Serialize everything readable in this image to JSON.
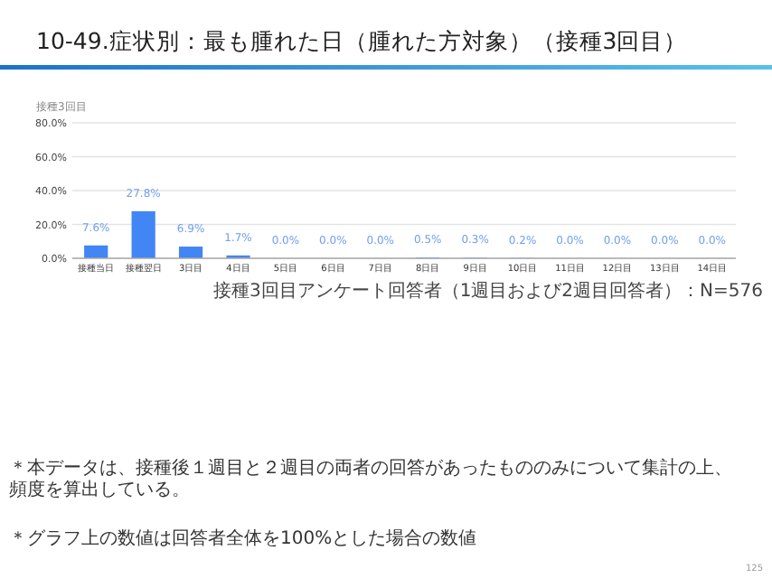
{
  "chart_data": {
    "type": "bar",
    "title": "10-49.症状別：最も腫れた日（腫れた方対象）（接種3回目）",
    "subtitle": "接種3回目",
    "categories": [
      "接種当日",
      "接種翌日",
      "3日目",
      "4日目",
      "5日目",
      "6日目",
      "7日目",
      "8日目",
      "9日目",
      "10日目",
      "11日目",
      "12日目",
      "13日目",
      "14日目"
    ],
    "values": [
      7.6,
      27.8,
      6.9,
      1.7,
      0.0,
      0.0,
      0.0,
      0.5,
      0.3,
      0.2,
      0.0,
      0.0,
      0.0,
      0.0
    ],
    "value_labels": [
      "7.6%",
      "27.8%",
      "6.9%",
      "1.7%",
      "0.0%",
      "0.0%",
      "0.0%",
      "0.5%",
      "0.3%",
      "0.2%",
      "0.0%",
      "0.0%",
      "0.0%",
      "0.0%"
    ],
    "color": "#4285f4",
    "ylim": [
      0,
      80
    ],
    "yticks": [
      {
        "value": 0,
        "label": "0.0%"
      },
      {
        "value": 20,
        "label": "20.0%"
      },
      {
        "value": 40,
        "label": "40.0%"
      },
      {
        "value": 60,
        "label": "60.0%"
      },
      {
        "value": 80,
        "label": "80.0%"
      }
    ],
    "grid": "y",
    "annotations": [
      "接種3回目アンケート回答者（1週目および2週目回答者）：N=576",
      "＊本データは、接種後１週目と２週目の両者の回答があったもののみについて集計の上、頻度を算出している。",
      "＊グラフ上の数値は回答者全体を100%とした場合の数値",
      "125"
    ]
  }
}
